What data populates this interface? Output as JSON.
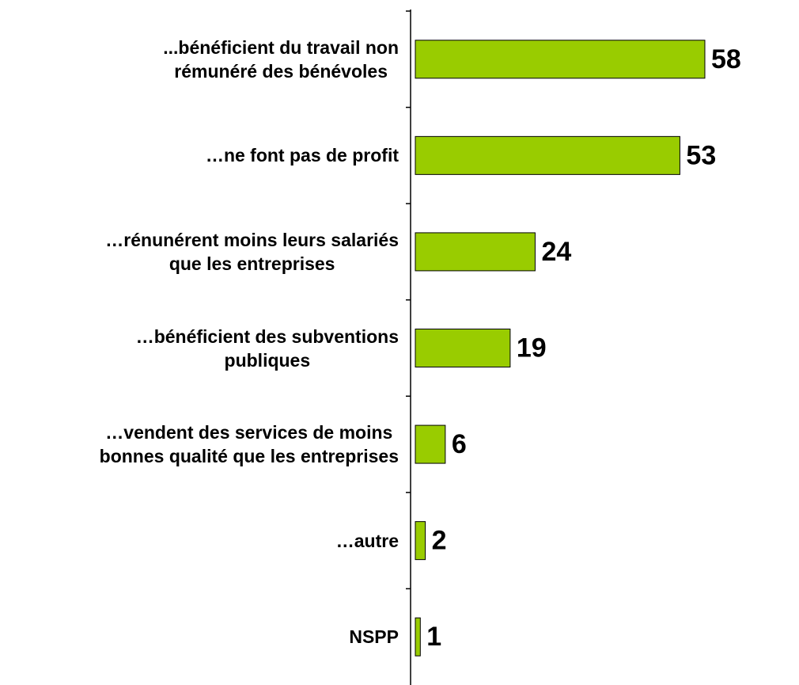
{
  "chart_data": {
    "type": "bar",
    "orientation": "horizontal",
    "categories": [
      "...bénéficient du travail non\nrémunéré des bénévoles",
      "…ne font pas de profit",
      "…rénunérent moins leurs salariés\nque les entreprises",
      "…bénéficient des subventions\npubliques",
      "…vendent des services de moins\nbonnes qualité que les entreprises",
      "…autre",
      "NSPP"
    ],
    "values": [
      58,
      53,
      24,
      19,
      6,
      2,
      1
    ],
    "color": "#99cc00"
  }
}
